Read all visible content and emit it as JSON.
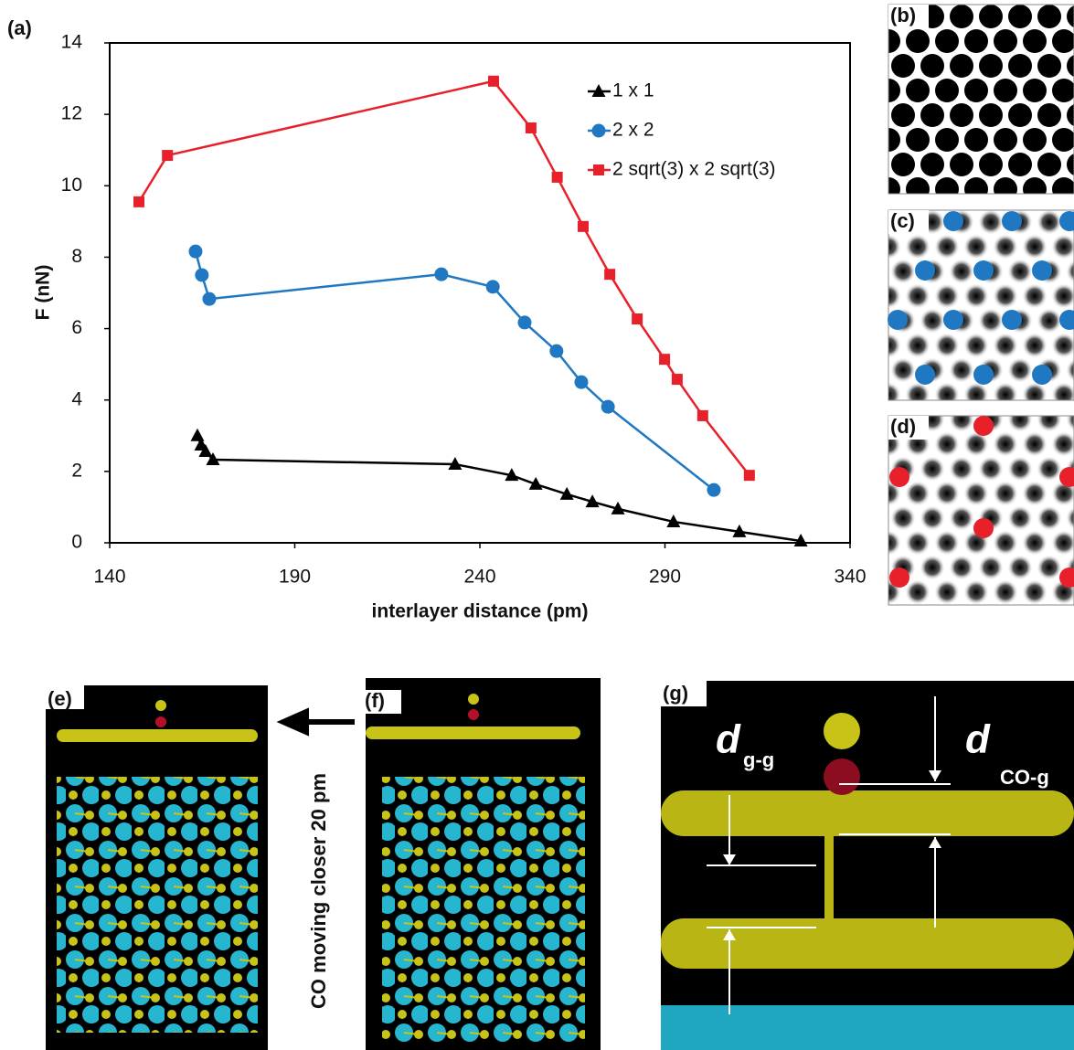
{
  "chart_data": {
    "type": "line",
    "panel_label": "(a)",
    "x_label": "interlayer distance (pm)",
    "y_label": "F (nN)",
    "xlim": [
      140,
      340
    ],
    "xticks": [
      140,
      190,
      240,
      290,
      340
    ],
    "ylim": [
      0,
      14
    ],
    "yticks": [
      0,
      2,
      4,
      6,
      8,
      10,
      12,
      14
    ],
    "legend": "upper right",
    "series": [
      {
        "name": "1 x 1",
        "color": "#000000",
        "marker": "triangle",
        "x": [
          163.7,
          164.7,
          165.9,
          167.9,
          233.3,
          248.6,
          255.1,
          263.5,
          270.4,
          277.3,
          292.3,
          310.1,
          326.7
        ],
        "values": [
          3.0,
          2.74,
          2.56,
          2.33,
          2.2,
          1.89,
          1.64,
          1.36,
          1.15,
          0.95,
          0.59,
          0.31,
          0.05
        ]
      },
      {
        "name": "2 x 2",
        "color": "#1f78c1",
        "marker": "circle",
        "x": [
          163.2,
          164.9,
          166.9,
          229.6,
          243.5,
          252.1,
          260.7,
          267.4,
          274.6,
          303.2
        ],
        "values": [
          8.16,
          7.5,
          6.83,
          7.52,
          7.17,
          6.17,
          5.37,
          4.5,
          3.81,
          1.48
        ]
      },
      {
        "name": "2 sqrt(3) x 2 sqrt(3)",
        "color": "#e8202a",
        "marker": "square",
        "x": [
          147.9,
          155.6,
          243.7,
          253.8,
          260.9,
          267.9,
          275.1,
          282.5,
          289.9,
          293.3,
          300.2,
          312.8
        ],
        "values": [
          9.55,
          10.85,
          12.93,
          11.62,
          10.24,
          8.86,
          7.52,
          6.27,
          5.14,
          4.58,
          3.56,
          1.89
        ]
      }
    ]
  },
  "panels": {
    "b": "(b)",
    "c": "(c)",
    "d": "(d)",
    "e": "(e)",
    "f": "(f)",
    "g": "(g)"
  },
  "annotations": {
    "move": "CO moving closer 20 pm",
    "d_gg": "d",
    "d_gg_sub": "g-g",
    "d_cog": "d",
    "d_cog_sub": "CO-g"
  }
}
